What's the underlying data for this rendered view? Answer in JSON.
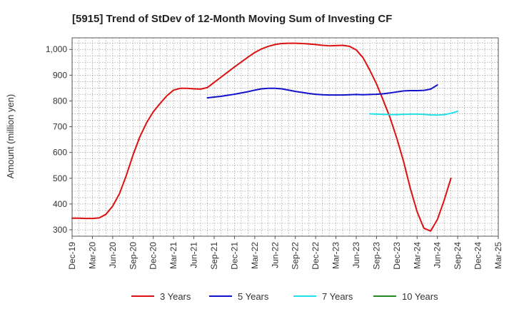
{
  "chart_data": {
    "type": "line",
    "title": "[5915]  Trend of StDev of 12-Month Moving Sum of Investing CF",
    "ylabel": "Amount (million yen)",
    "xlabel": "",
    "ylim": [
      275,
      1045
    ],
    "yticks": [
      300,
      400,
      500,
      600,
      700,
      800,
      900,
      1000
    ],
    "ytick_labels": [
      "300",
      "400",
      "500",
      "600",
      "700",
      "800",
      "900",
      "1,000"
    ],
    "x_tick_labels": [
      "Dec-19",
      "Mar-20",
      "Jun-20",
      "Sep-20",
      "Dec-20",
      "Mar-21",
      "Jun-21",
      "Sep-21",
      "Dec-21",
      "Mar-22",
      "Jun-22",
      "Sep-22",
      "Dec-22",
      "Mar-23",
      "Jun-23",
      "Sep-23",
      "Dec-23",
      "Mar-24",
      "Jun-24",
      "Sep-24",
      "Dec-24",
      "Mar-25"
    ],
    "x_range_months": "Dec-19 to Mar-25",
    "grid": true,
    "legend_position": "bottom",
    "series": [
      {
        "name": "3 Years",
        "color": "#dd1111",
        "start": "Dec-19",
        "values": [
          345,
          345,
          344,
          344,
          346,
          360,
          392,
          440,
          510,
          590,
          660,
          715,
          758,
          790,
          820,
          842,
          849,
          849,
          847,
          846,
          852,
          872,
          892,
          912,
          932,
          951,
          970,
          988,
          1002,
          1012,
          1019,
          1023,
          1024,
          1024,
          1023,
          1021,
          1019,
          1016,
          1014,
          1015,
          1016,
          1012,
          998,
          968,
          920,
          866,
          802,
          735,
          655,
          565,
          460,
          370,
          306,
          295,
          340,
          415,
          500
        ]
      },
      {
        "name": "5 Years",
        "color": "#1111cc",
        "start": "Aug-21",
        "values": [
          812,
          815,
          818,
          822,
          826,
          831,
          836,
          842,
          847,
          849,
          849,
          847,
          842,
          837,
          833,
          829,
          826,
          824,
          823,
          823,
          823,
          824,
          825,
          824,
          825,
          826,
          828,
          831,
          835,
          839,
          840,
          840,
          841,
          846,
          862
        ]
      },
      {
        "name": "7 Years",
        "color": "#22e0e8",
        "start": "Aug-23",
        "values": [
          750,
          749,
          748,
          747,
          747,
          748,
          749,
          749,
          748,
          746,
          745,
          747,
          752,
          760
        ]
      },
      {
        "name": "10 Years",
        "color": "#228822",
        "start": "",
        "values": []
      }
    ]
  }
}
